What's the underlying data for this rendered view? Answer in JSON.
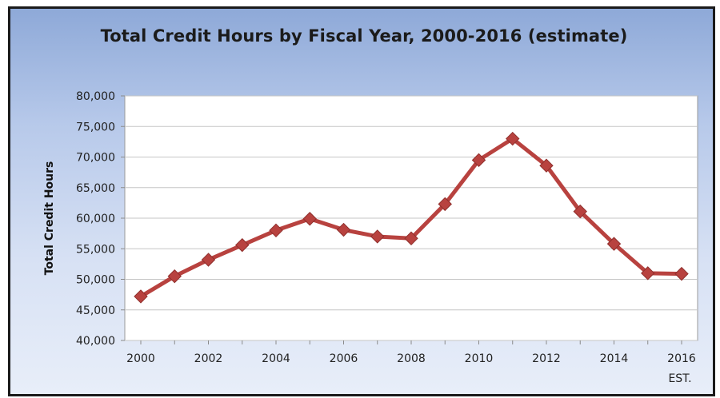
{
  "chart_data": {
    "type": "line",
    "title": "Total Credit Hours by Fiscal Year, 2000-2016 (estimate)",
    "xlabel": "",
    "ylabel": "Total Credit Hours",
    "x": [
      2000,
      2001,
      2002,
      2003,
      2004,
      2005,
      2006,
      2007,
      2008,
      2009,
      2010,
      2011,
      2012,
      2013,
      2014,
      2015,
      2016
    ],
    "x_tick_labels": [
      "2000",
      "2002",
      "2004",
      "2006",
      "2008",
      "2010",
      "2012",
      "2014",
      "2016"
    ],
    "x_tick_values": [
      2000,
      2002,
      2004,
      2006,
      2008,
      2010,
      2012,
      2014,
      2016
    ],
    "x_sublabel": "EST.",
    "series": [
      {
        "values": [
          47200,
          50500,
          53200,
          55600,
          58000,
          59900,
          58100,
          57000,
          56700,
          62300,
          69500,
          73000,
          68600,
          61100,
          55800,
          51000,
          50900
        ],
        "color": "#b8423f"
      }
    ],
    "y_tick_labels": [
      "40,000",
      "45,000",
      "50,000",
      "55,000",
      "60,000",
      "65,000",
      "70,000",
      "75,000",
      "80,000"
    ],
    "y_tick_values": [
      40000,
      45000,
      50000,
      55000,
      60000,
      65000,
      70000,
      75000,
      80000
    ],
    "ylim": [
      40000,
      80000
    ],
    "xlim": [
      2000,
      2016
    ],
    "grid": true,
    "legend": "none"
  }
}
